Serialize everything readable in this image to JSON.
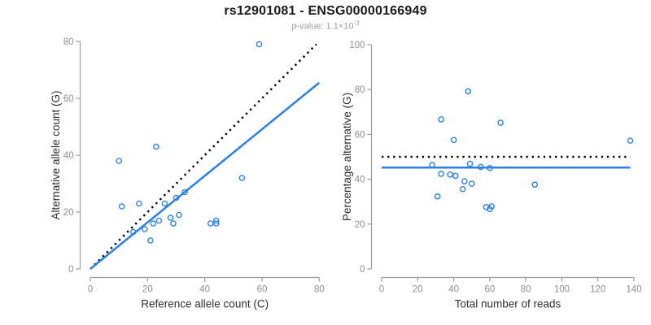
{
  "header": {
    "title": "rs12901081 - ENSG00000166949",
    "pvalue_base": "p-value: 1.1×10",
    "pvalue_exp": "-3"
  },
  "colors": {
    "point_blue": "#2B80E6",
    "line_blue": "#2B80E6",
    "line_black": "#000000",
    "axis": "#9c9c9c",
    "tick_text": "#8e8e8e",
    "axis_title": "#303030",
    "title_text": "#1a1a1a",
    "subtitle_text": "#9e9e9e",
    "background": "#ffffff"
  },
  "chart_data": [
    {
      "type": "scatter",
      "name": "allele-counts-scatter",
      "xlabel": "Reference allele count (C)",
      "ylabel": "Alternative allele count (G)",
      "xlim": [
        0,
        80
      ],
      "ylim": [
        0,
        80
      ],
      "xticks": [
        0,
        20,
        40,
        60,
        80
      ],
      "yticks": [
        0,
        20,
        40,
        60,
        80
      ],
      "grid": false,
      "legend": "none",
      "points": [
        [
          10,
          38
        ],
        [
          11,
          22
        ],
        [
          15,
          13
        ],
        [
          17,
          23
        ],
        [
          19,
          14
        ],
        [
          21,
          10
        ],
        [
          22,
          16
        ],
        [
          23,
          43
        ],
        [
          24,
          17
        ],
        [
          26,
          23
        ],
        [
          28,
          18
        ],
        [
          29,
          16
        ],
        [
          30,
          25
        ],
        [
          31,
          19
        ],
        [
          33,
          27
        ],
        [
          42,
          16
        ],
        [
          44,
          16
        ],
        [
          44,
          17
        ],
        [
          53,
          32
        ],
        [
          59,
          79
        ]
      ],
      "lines": [
        {
          "name": "identity-line",
          "style": "dotted",
          "color": "black",
          "from": [
            0,
            0
          ],
          "to": [
            79,
            79
          ]
        },
        {
          "name": "fit-line",
          "style": "solid",
          "color": "blue",
          "from": [
            0,
            0
          ],
          "to": [
            80,
            65.5
          ]
        }
      ]
    },
    {
      "type": "scatter",
      "name": "percentage-alternative-scatter",
      "xlabel": "Total number of reads",
      "ylabel": "Percentage alternative (G)",
      "xlim": [
        0,
        140
      ],
      "ylim": [
        0,
        100
      ],
      "xticks": [
        0,
        20,
        40,
        60,
        80,
        100,
        120,
        140
      ],
      "yticks": [
        0,
        20,
        40,
        60,
        80,
        100
      ],
      "grid": false,
      "legend": "none",
      "points": [
        [
          28,
          46.4
        ],
        [
          31,
          32.3
        ],
        [
          33,
          42.4
        ],
        [
          33,
          66.7
        ],
        [
          38,
          42.1
        ],
        [
          40,
          57.5
        ],
        [
          41,
          41.5
        ],
        [
          45,
          35.6
        ],
        [
          46,
          39.1
        ],
        [
          48,
          79.2
        ],
        [
          49,
          46.9
        ],
        [
          50,
          38.0
        ],
        [
          55,
          45.5
        ],
        [
          58,
          27.6
        ],
        [
          60,
          26.7
        ],
        [
          60,
          45.0
        ],
        [
          61,
          27.9
        ],
        [
          66,
          65.2
        ],
        [
          85,
          37.6
        ],
        [
          138,
          57.2
        ]
      ],
      "lines": [
        {
          "name": "fifty-percent-line",
          "style": "dotted",
          "color": "black",
          "from": [
            0,
            50
          ],
          "to": [
            138,
            50
          ]
        },
        {
          "name": "mean-percentage-line",
          "style": "solid",
          "color": "blue",
          "from": [
            0,
            45.2
          ],
          "to": [
            138,
            45.2
          ]
        }
      ]
    }
  ]
}
